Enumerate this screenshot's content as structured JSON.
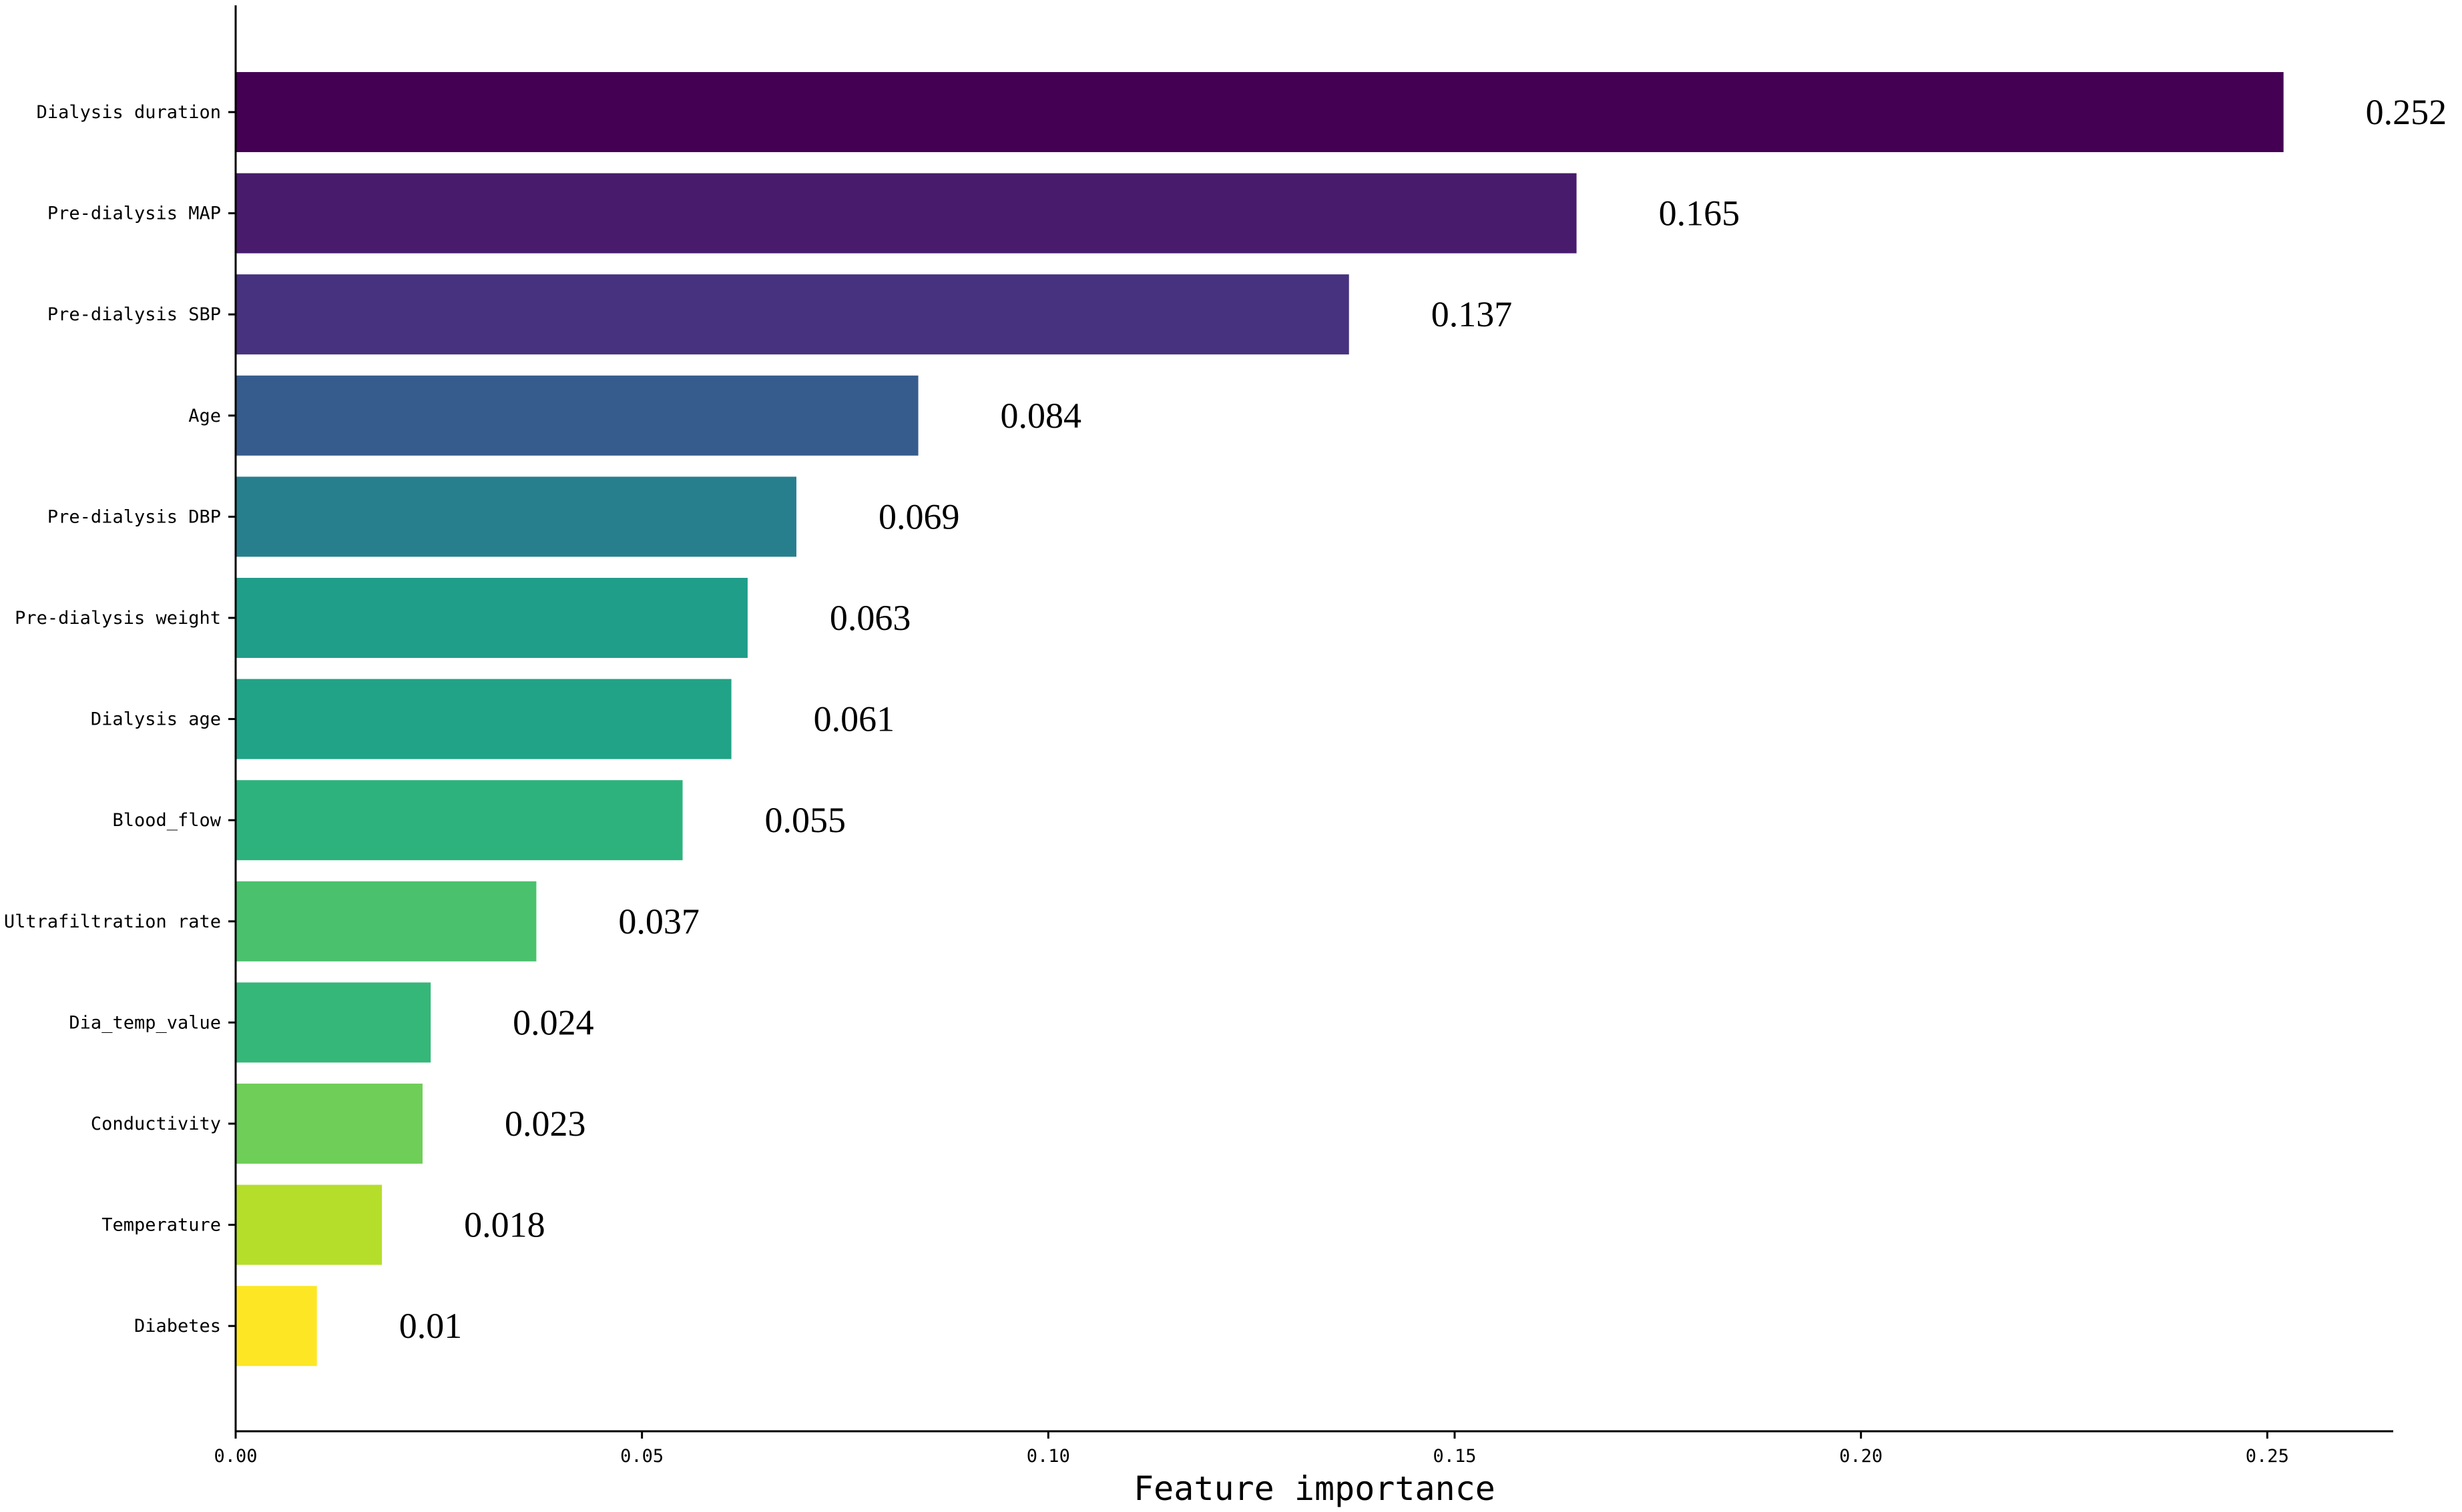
{
  "chart_data": {
    "type": "bar",
    "orientation": "horizontal",
    "title": "",
    "xlabel": "Feature importance",
    "ylabel": "",
    "xlim": [
      0,
      0.2655
    ],
    "x_ticks": [
      "0.00",
      "0.05",
      "0.10",
      "0.15",
      "0.20",
      "0.25"
    ],
    "grid": false,
    "legend": "none",
    "colormap": "viridis (reversed, top to bottom)",
    "categories": [
      "Dialysis duration",
      "Pre-dialysis MAP",
      "Pre-dialysis SBP",
      "Age",
      "Pre-dialysis DBP",
      "Pre-dialysis weight",
      "Dialysis age",
      "Blood_flow",
      "Ultrafiltration rate",
      "Dia_temp_value",
      "Conductivity",
      "Temperature",
      "Diabetes"
    ],
    "values": [
      0.252,
      0.165,
      0.137,
      0.084,
      0.069,
      0.063,
      0.061,
      0.055,
      0.037,
      0.024,
      0.023,
      0.018,
      0.01
    ],
    "value_labels": [
      "0.252",
      "0.165",
      "0.137",
      "0.084",
      "0.069",
      "0.063",
      "0.061",
      "0.055",
      "0.037",
      "0.024",
      "0.023",
      "0.018",
      "0.01"
    ],
    "colors": [
      "#440154",
      "#481b6d",
      "#46327e",
      "#365c8d",
      "#277f8e",
      "#1f9e89",
      "#20a386",
      "#2db27d",
      "#4ac16d",
      "#35b779",
      "#6ece58",
      "#b5de2b",
      "#fde725"
    ]
  }
}
